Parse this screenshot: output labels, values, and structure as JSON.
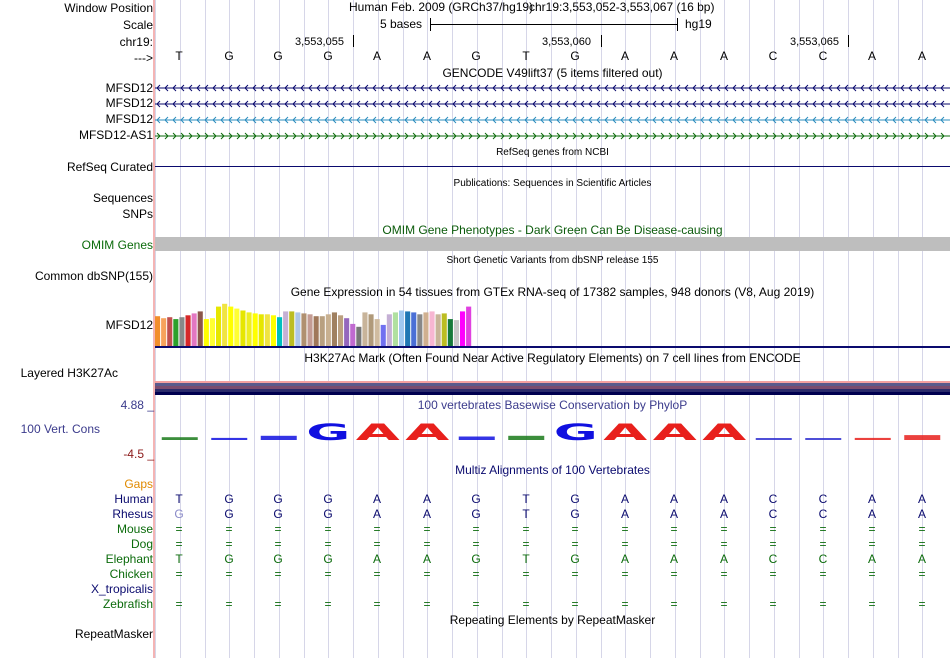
{
  "header": {
    "window_position_label": "Window Position",
    "scale_label": "Scale",
    "chrom_label": "chr19:",
    "strand_label": "--->",
    "assembly_text": "Human Feb. 2009 (GRCh37/hg19)",
    "position_text": "chr19:3,553,052-3,553,067 (16 bp)",
    "scale_text": "5 bases",
    "db_text": "hg19",
    "coord_ticks": [
      "3,553,055",
      "3,553,060",
      "3,553,065"
    ]
  },
  "sequence": [
    "T",
    "G",
    "G",
    "G",
    "A",
    "A",
    "G",
    "T",
    "G",
    "A",
    "A",
    "A",
    "C",
    "C",
    "A",
    "A"
  ],
  "tracks": {
    "gencode": {
      "title": "GENCODE V49lift37 (5 items filtered out)",
      "items": [
        {
          "label": "MFSD12",
          "color": "#0a0a6e"
        },
        {
          "label": "MFSD12",
          "color": "#0a0a6e"
        },
        {
          "label": "MFSD12",
          "color": "#2b8cbe"
        },
        {
          "label": "MFSD12-AS1",
          "color": "#0b6b0b"
        }
      ]
    },
    "refseq": {
      "label": "RefSeq Curated",
      "title": "RefSeq genes from NCBI"
    },
    "publications": {
      "title": "Publications: Sequences in Scientific Articles",
      "labels": [
        "Sequences",
        "SNPs"
      ]
    },
    "omim": {
      "label": "OMIM Genes",
      "title": "OMIM Gene Phenotypes - Dark Green Can Be Disease-causing"
    },
    "dbsnp": {
      "label": "Common dbSNP(155)",
      "title": "Short Genetic Variants from dbSNP release 155"
    },
    "gtex": {
      "label": "MFSD12",
      "title": "Gene Expression in 54 tissues from GTEx RNA-seq of 17382 samples, 948 donors (V8, Aug 2019)",
      "values": [
        0.62,
        0.58,
        0.6,
        0.56,
        0.6,
        0.64,
        0.68,
        0.72,
        0.56,
        0.58,
        0.82,
        0.88,
        0.82,
        0.78,
        0.74,
        0.7,
        0.68,
        0.66,
        0.66,
        0.64,
        0.6,
        0.72,
        0.72,
        0.7,
        0.68,
        0.66,
        0.62,
        0.62,
        0.66,
        0.7,
        0.64,
        0.58,
        0.46,
        0.4,
        0.7,
        0.66,
        0.56,
        0.44,
        0.66,
        0.7,
        0.74,
        0.72,
        0.7,
        0.66,
        0.7,
        0.72,
        0.66,
        0.68,
        0.56,
        0.54,
        0.72,
        0.82,
        0.64,
        0.6
      ],
      "colors": [
        "#f28e2b",
        "#f7a35c",
        "#c0504d",
        "#2ca02c",
        "#888888",
        "#d62728",
        "#e377c2",
        "#8c564b",
        "#ffff00",
        "#ffff33",
        "#e6e600",
        "#f0e442",
        "#ffff00",
        "#ffff33",
        "#e6e600",
        "#eeee22",
        "#ffff00",
        "#e6e600",
        "#f0e442",
        "#ffff00",
        "#00bfbf",
        "#c5b0d5",
        "#bcbd22",
        "#aec7e8",
        "#b09070",
        "#c49c94",
        "#a0785a",
        "#b8a080",
        "#c8b090",
        "#a08060",
        "#bca080",
        "#9467bd",
        "#c06ad0",
        "#777777",
        "#c8b49a",
        "#b09a7a",
        "#d0bca0",
        "#7070f0",
        "#c5b0d5",
        "#b0e0a0",
        "#a0c8f0",
        "#1f77b4",
        "#4a6fd6",
        "#888888",
        "#d0b090",
        "#f7b6d2",
        "#c8b49a",
        "#bcbd22",
        "#177a3a",
        "#c8c8c8",
        "#ff00ff",
        "#e040e0",
        "#ffffff",
        "#ffffff"
      ]
    },
    "h3k27ac": {
      "label": "Layered H3K27Ac",
      "title": "H3K27Ac Mark (Often Found Near Active Regulatory Elements) on 7 cell lines from ENCODE"
    },
    "phylop": {
      "label": "100 Vert. Cons",
      "max_label": "4.88 _",
      "min_label": "-4.5 _",
      "title": "100 vertebrates Basewise Conservation by PhyloP",
      "logo": [
        "T",
        "G",
        "G",
        "G",
        "A",
        "A",
        "G",
        "T",
        "G",
        "A",
        "A",
        "A",
        "C",
        "C",
        "A",
        "A"
      ],
      "scores": [
        0.2,
        0.15,
        0.3,
        1.0,
        1.0,
        1.0,
        0.25,
        0.3,
        1.0,
        1.0,
        1.0,
        1.0,
        0.05,
        0.05,
        0.15,
        0.35
      ]
    },
    "multiz": {
      "title": "Multiz Alignments of 100 Vertebrates",
      "gaps_label": "Gaps",
      "species": [
        {
          "name": "Human",
          "color": "#0a0a6e",
          "bases": [
            "T",
            "G",
            "G",
            "G",
            "A",
            "A",
            "G",
            "T",
            "G",
            "A",
            "A",
            "A",
            "C",
            "C",
            "A",
            "A"
          ]
        },
        {
          "name": "Rhesus",
          "color": "#0a0a6e",
          "bases": [
            "G",
            "G",
            "G",
            "G",
            "A",
            "A",
            "G",
            "T",
            "G",
            "A",
            "A",
            "A",
            "C",
            "C",
            "A",
            "A"
          ]
        },
        {
          "name": "Mouse",
          "color": "#0b6b0b",
          "bases": [
            "=",
            "=",
            "=",
            "=",
            "=",
            "=",
            "=",
            "=",
            "=",
            "=",
            "=",
            "=",
            "=",
            "=",
            "=",
            "="
          ]
        },
        {
          "name": "Dog",
          "color": "#0b6b0b",
          "bases": [
            "=",
            "=",
            "=",
            "=",
            "=",
            "=",
            "=",
            "=",
            "=",
            "=",
            "=",
            "=",
            "=",
            "=",
            "=",
            "="
          ]
        },
        {
          "name": "Elephant",
          "color": "#0b6b0b",
          "bases": [
            "T",
            "G",
            "G",
            "G",
            "A",
            "A",
            "G",
            "T",
            "G",
            "A",
            "A",
            "A",
            "C",
            "C",
            "A",
            "A"
          ]
        },
        {
          "name": "Chicken",
          "color": "#0b6b0b",
          "bases": [
            "=",
            "=",
            "=",
            "=",
            "=",
            "=",
            "=",
            "=",
            "=",
            "=",
            "=",
            "=",
            "=",
            "=",
            "=",
            "="
          ]
        },
        {
          "name": "X_tropicalis",
          "color": "#0a0a6e",
          "bases": []
        },
        {
          "name": "Zebrafish",
          "color": "#0b6b0b",
          "bases": [
            "=",
            "=",
            "=",
            "=",
            "=",
            "=",
            "=",
            "=",
            "=",
            "=",
            "=",
            "=",
            "=",
            "=",
            "=",
            "="
          ]
        }
      ]
    },
    "repeatmasker": {
      "label": "RepeatMasker",
      "title": "Repeating Elements by RepeatMasker"
    }
  },
  "colors": {
    "navy": "#0a0a6e",
    "green": "#0b6b0b",
    "blue_track": "#2b8cbe",
    "cons_label": "#3b3b8c",
    "min_label": "#8b1a1a",
    "gaps": "#e08a00",
    "omim_bar": "#bebebe",
    "omim_title": "#0b5b0b",
    "divider": "#2b2b9b",
    "rhesus_g": "#8a8ac8",
    "repeat_edge": "#f08080"
  }
}
